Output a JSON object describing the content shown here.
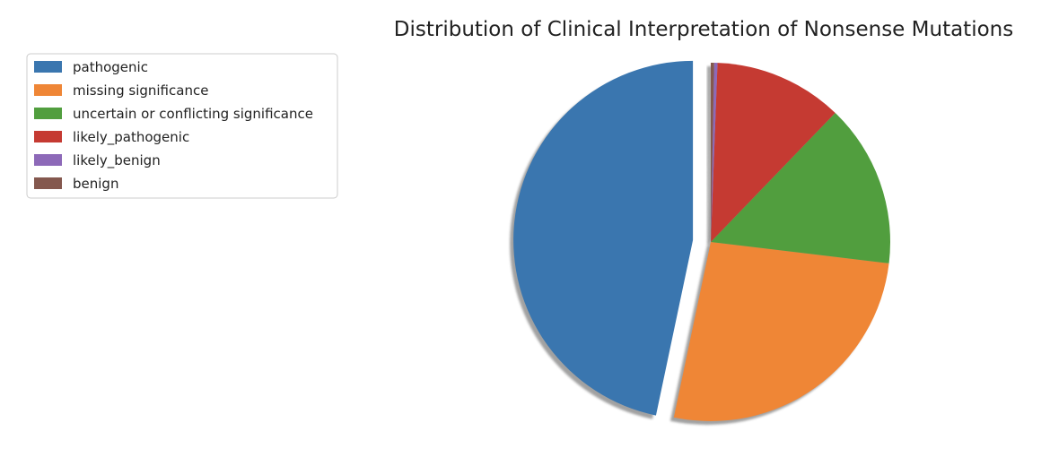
{
  "chart_data": {
    "type": "pie",
    "title": "Distribution of Clinical Interpretation of Nonsense Mutations",
    "legend_placement": "upper-left outside",
    "start_angle_deg": 90,
    "direction": "counterclockwise",
    "shadow": true,
    "exploded": [
      "pathogenic"
    ],
    "slices": [
      {
        "label": "pathogenic",
        "value": 46.7,
        "color": "#3a76af"
      },
      {
        "label": "missing significance",
        "value": 26.4,
        "color": "#ef8636"
      },
      {
        "label": "uncertain or conflicting significance",
        "value": 14.7,
        "color": "#519e3e"
      },
      {
        "label": "likely_pathogenic",
        "value": 11.6,
        "color": "#c53a32"
      },
      {
        "label": "likely_benign",
        "value": 0.3,
        "color": "#8d69b8"
      },
      {
        "label": "benign",
        "value": 0.3,
        "color": "#84584e"
      }
    ]
  }
}
